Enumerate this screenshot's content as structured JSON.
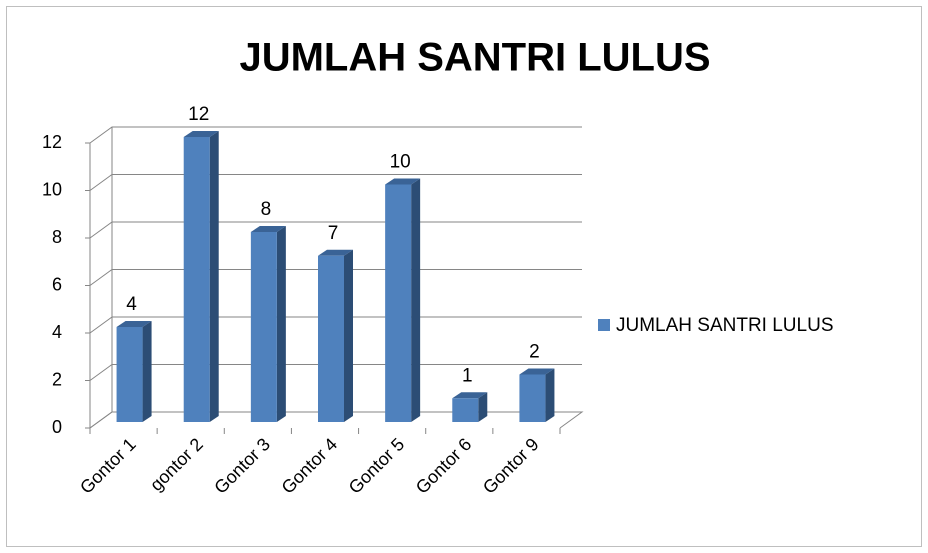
{
  "chart_data": {
    "type": "bar3d",
    "title": "JUMLAH SANTRI LULUS",
    "categories": [
      "Gontor 1",
      "gontor 2",
      "Gontor 3",
      "Gontor 4",
      "Gontor 5",
      "Gontor 6",
      "Gontor 9"
    ],
    "series": [
      {
        "name": "JUMLAH SANTRI LULUS",
        "color": "#4f81bd",
        "values": [
          4,
          12,
          8,
          7,
          10,
          1,
          2
        ]
      }
    ],
    "ylim": [
      0,
      12
    ],
    "yticks": [
      0,
      2,
      4,
      6,
      8,
      10,
      12
    ],
    "grid": true,
    "legend": "right"
  }
}
